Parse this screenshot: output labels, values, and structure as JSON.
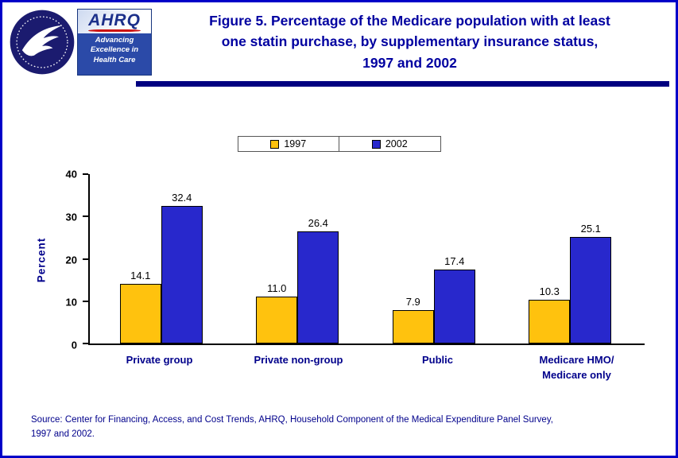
{
  "header": {
    "title": "Figure 5. Percentage of the Medicare population with at least\none statin purchase, by supplementary insurance status,\n1997 and 2002",
    "ahrq_word": "AHRQ",
    "ahrq_tagline": "Advancing\nExcellence in\nHealth Care",
    "hhs_seal_icon": "hhs-seal-icon"
  },
  "chart_data": {
    "type": "bar",
    "title": "Figure 5. Percentage of the Medicare population with at least one statin purchase, by supplementary insurance status, 1997 and 2002",
    "categories": [
      "Private group",
      "Private non-group",
      "Public",
      "Medicare HMO/\nMedicare only"
    ],
    "series": [
      {
        "name": "1997",
        "color": "#ffc20e",
        "values": [
          14.1,
          11.0,
          7.9,
          10.3
        ]
      },
      {
        "name": "2002",
        "color": "#2828cc",
        "values": [
          32.4,
          26.4,
          17.4,
          25.1
        ]
      }
    ],
    "ylabel": "Percent",
    "xlabel": "",
    "ylim": [
      0,
      40
    ],
    "yticks": [
      0,
      10,
      20,
      30,
      40
    ],
    "grid": false,
    "legend_position": "top-center",
    "value_labels_shown": true
  },
  "source": "Source: Center for Financing, Access, and Cost Trends, AHRQ, Household Component of the Medical Expenditure Panel Survey,\n1997 and 2002."
}
